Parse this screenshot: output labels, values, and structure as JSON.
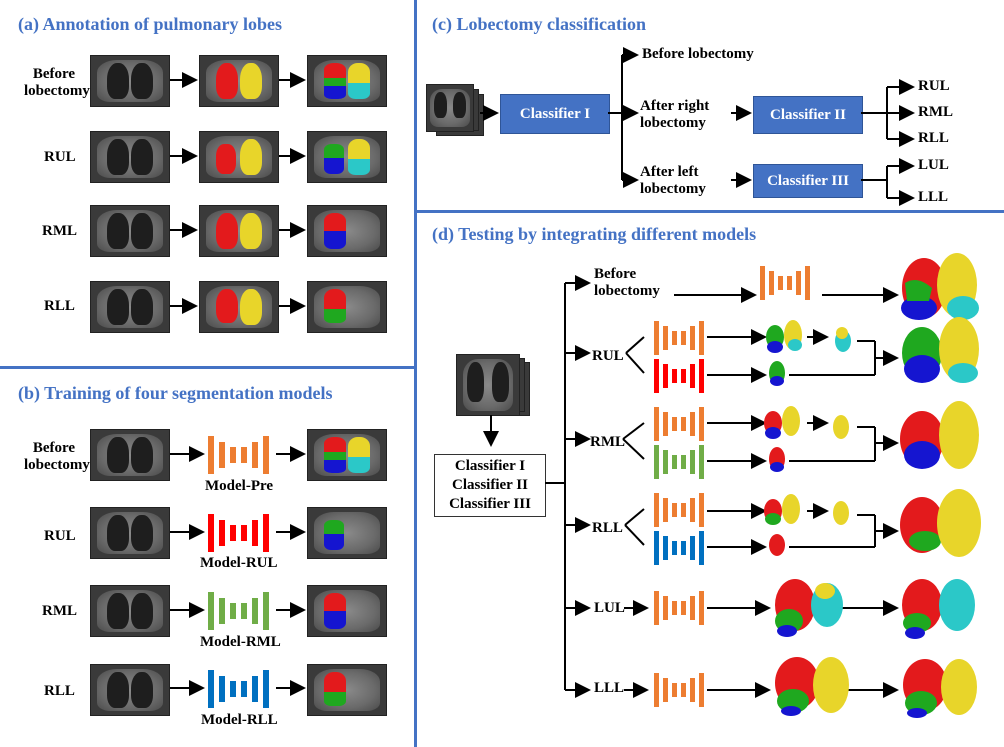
{
  "panels": {
    "a": {
      "title": "(a) Annotation of pulmonary lobes",
      "rows": [
        "Before lobectomy",
        "RUL",
        "RML",
        "RLL"
      ]
    },
    "b": {
      "title": "(b) Training of four segmentation models",
      "rows": [
        "Before lobectomy",
        "RUL",
        "RML",
        "RLL"
      ],
      "models": [
        "Model-Pre",
        "Model-RUL",
        "Model-RML",
        "Model-RLL"
      ]
    },
    "c": {
      "title": "(c) Lobectomy classification",
      "classifier1": "Classifier I",
      "classifier2": "Classifier II",
      "classifier3": "Classifier III",
      "before": "Before lobectomy",
      "after_right": "After right lobectomy",
      "after_left": "After left lobectomy",
      "right_outputs": [
        "RUL",
        "RML",
        "RLL"
      ],
      "left_outputs": [
        "LUL",
        "LLL"
      ]
    },
    "d": {
      "title": "(d) Testing by integrating different models",
      "classifiers": [
        "Classifier I",
        "Classifier II",
        "Classifier III"
      ],
      "branches": [
        "Before lobectomy",
        "RUL",
        "RML",
        "RLL",
        "LUL",
        "LLL"
      ]
    }
  },
  "colors": {
    "title": "#4472c4",
    "pre": "#ed7d31",
    "rul": "#ff0000",
    "rml": "#70ad47",
    "rll": "#0070c0",
    "lobe_red": "#e31a1c",
    "lobe_yellow": "#e8d52a",
    "lobe_green": "#1fa81f",
    "lobe_blue": "#1515d0",
    "lobe_cyan": "#2bc8c8"
  }
}
